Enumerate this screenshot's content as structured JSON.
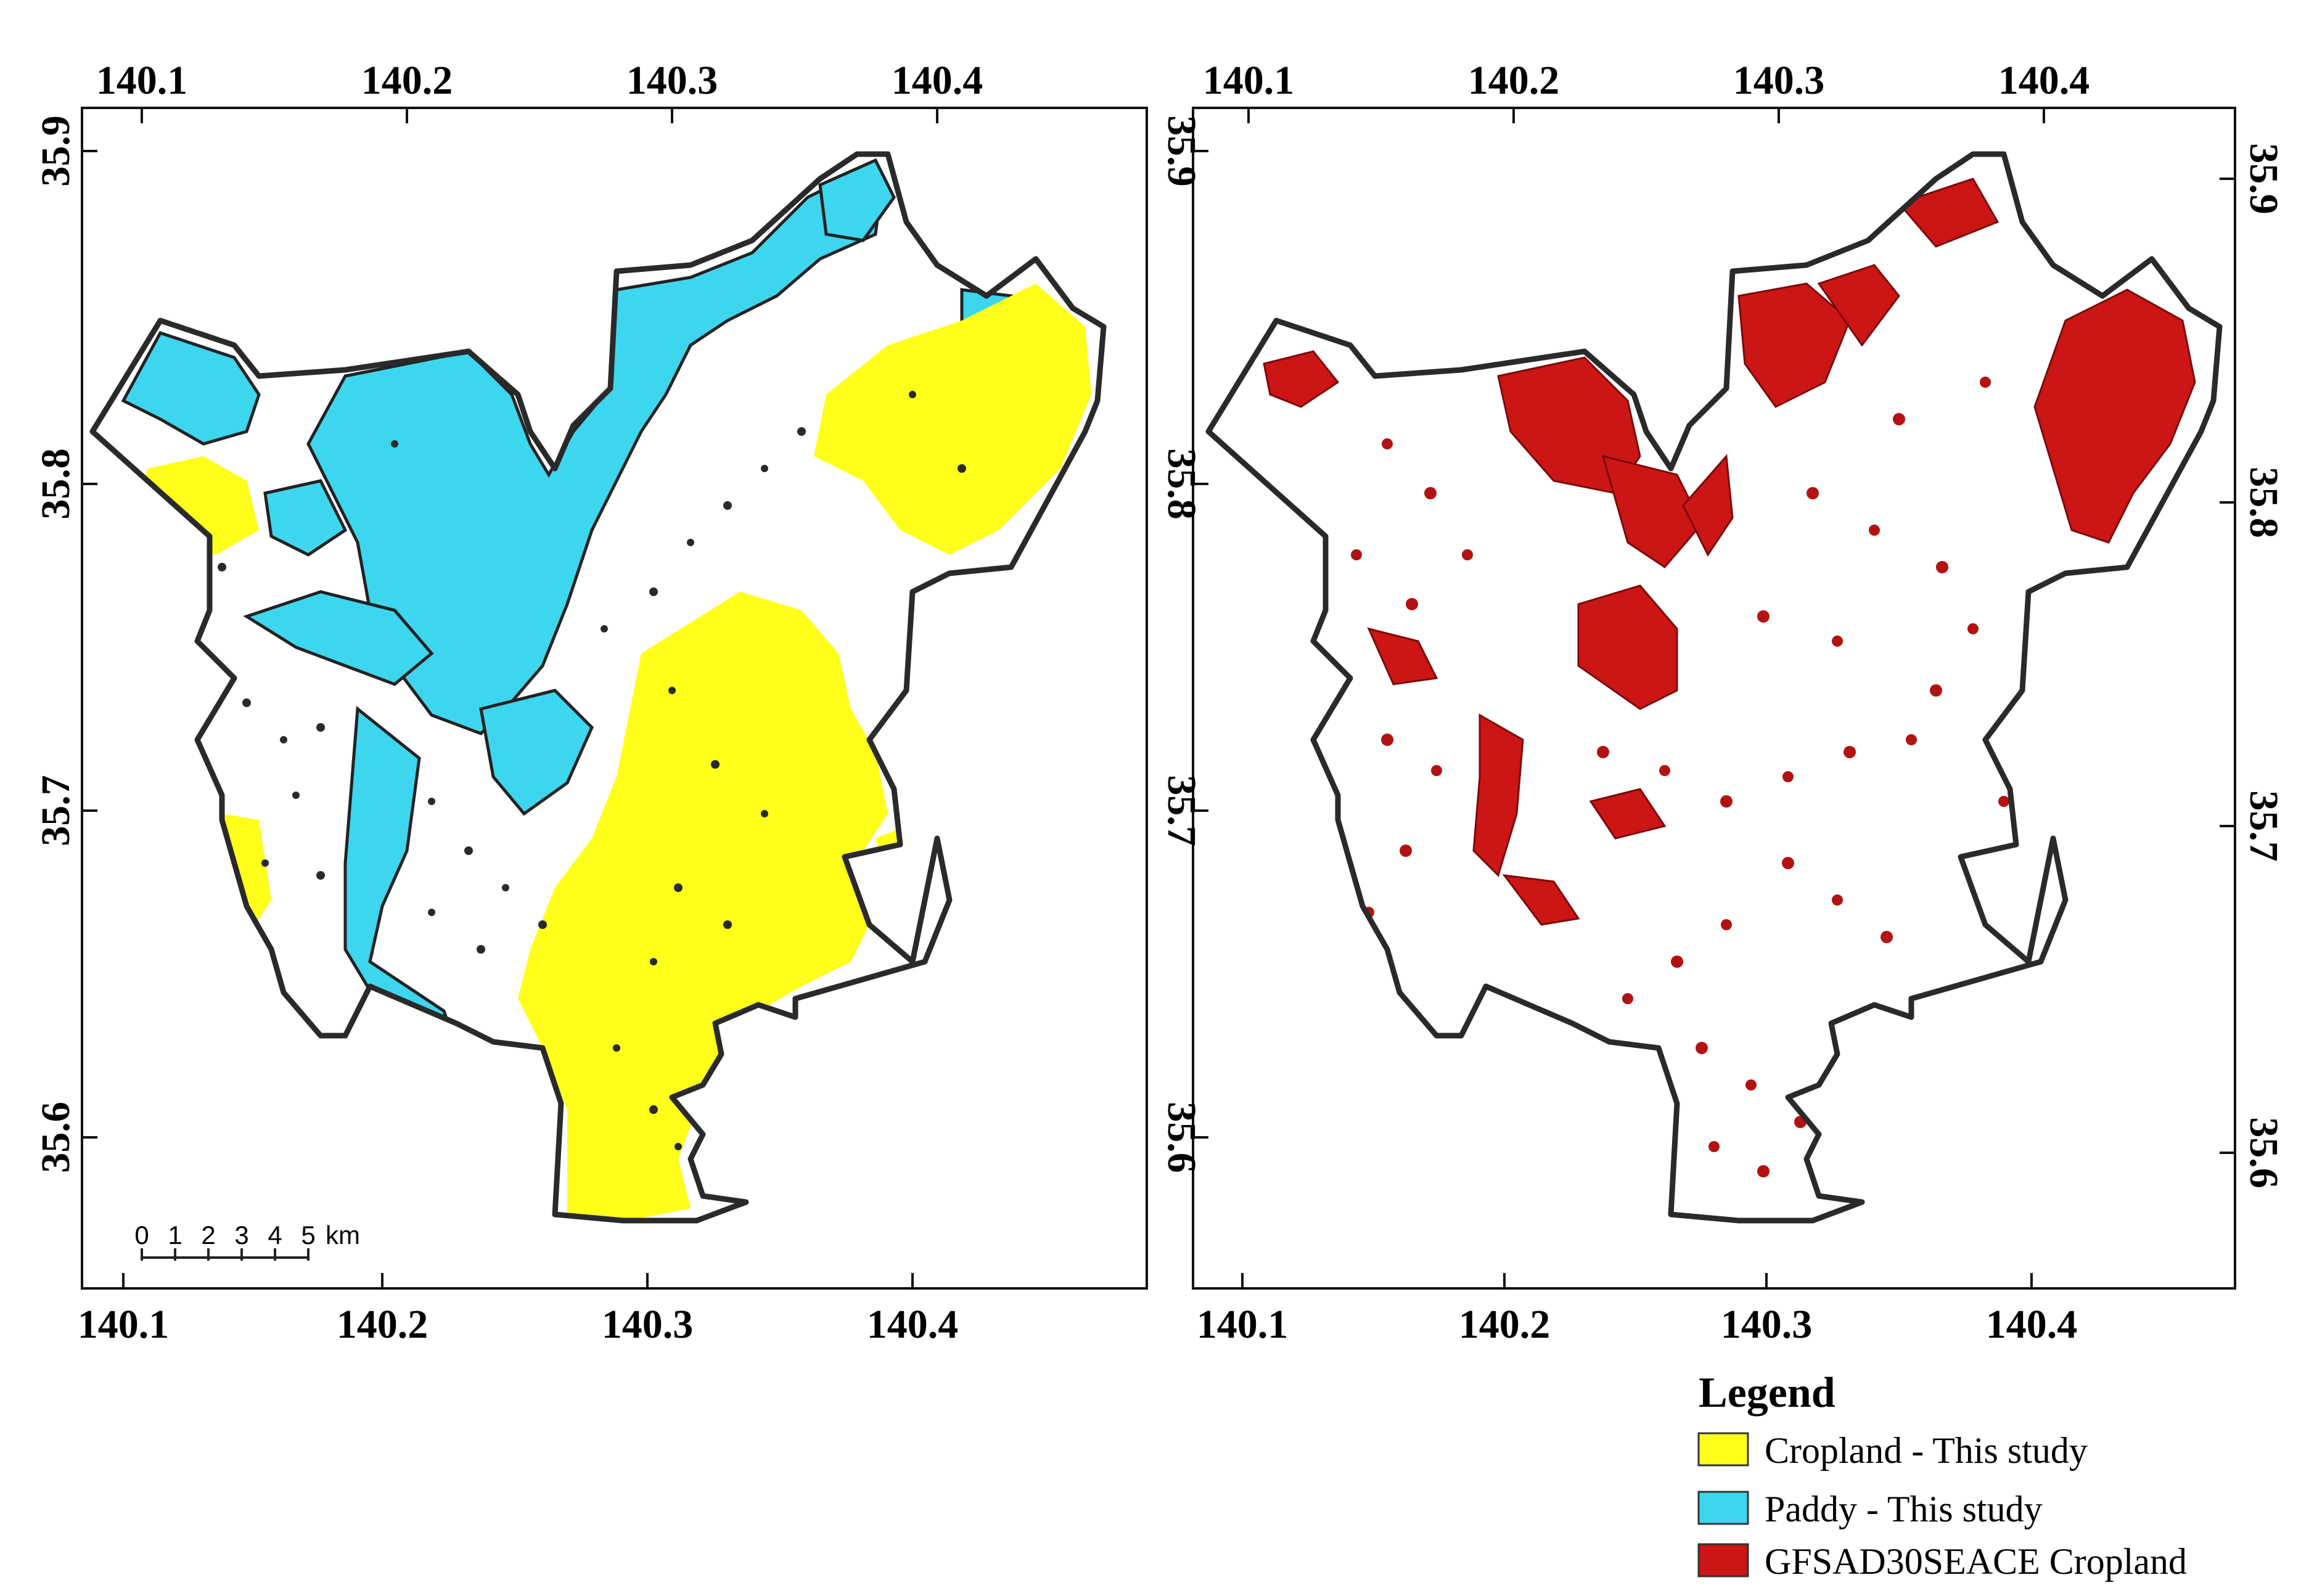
{
  "maps": [
    {
      "name": "This study",
      "x_ticks": [
        "140.1",
        "140.2",
        "140.3",
        "140.4"
      ],
      "y_ticks": [
        "35.9",
        "35.8",
        "35.7",
        "35.6"
      ],
      "layers": [
        "Cropland - This study",
        "Paddy - This study"
      ],
      "scale_bar": {
        "ticks": [
          "0",
          "1",
          "2",
          "3",
          "4",
          "5"
        ],
        "unit": "km"
      }
    },
    {
      "name": "GFSAD30SEACE",
      "x_ticks": [
        "140.1",
        "140.2",
        "140.3",
        "140.4"
      ],
      "y_ticks": [
        "35.9",
        "35.8",
        "35.7",
        "35.6"
      ],
      "layers": [
        "GFSAD30SEACE Cropland"
      ]
    }
  ],
  "legend": {
    "title": "Legend",
    "items": [
      {
        "label": "Cropland - This study",
        "color": "#ffff1a"
      },
      {
        "label": "Paddy - This study",
        "color": "#3dd6ee"
      },
      {
        "label": "GFSAD30SEACE Cropland",
        "color": "#cc1515"
      }
    ]
  },
  "colors": {
    "boundary": "#2a2a2a",
    "cropland": "#ffff1a",
    "paddy": "#3dd6ee",
    "gfsad": "#cc1515"
  }
}
